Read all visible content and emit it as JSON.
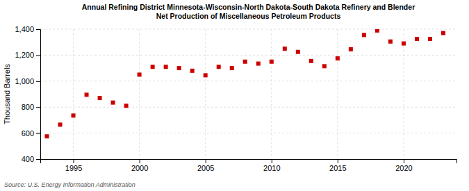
{
  "chart_data": {
    "type": "scatter",
    "title": "Annual Refining District Minnesota-Wisconsin-North Dakota-South Dakota Refinery and Blender\nNet Production of Miscellaneous Petroleum Products",
    "ylabel": "Thousand Barrels",
    "source": "Source: U.S. Energy Information Administration",
    "x": [
      1993,
      1994,
      1995,
      1996,
      1997,
      1998,
      1999,
      2000,
      2001,
      2002,
      2003,
      2004,
      2005,
      2006,
      2007,
      2008,
      2009,
      2010,
      2011,
      2012,
      2013,
      2014,
      2015,
      2016,
      2017,
      2018,
      2019,
      2020,
      2021,
      2022,
      2023
    ],
    "values": [
      575,
      665,
      735,
      895,
      870,
      835,
      810,
      1050,
      1110,
      1110,
      1100,
      1080,
      1045,
      1110,
      1100,
      1150,
      1135,
      1150,
      1250,
      1225,
      1155,
      1115,
      1175,
      1245,
      1355,
      1390,
      1305,
      1290,
      1325,
      1325,
      1370
    ],
    "color": "#cc0000",
    "marker": "square",
    "xlim": [
      1992.5,
      2024
    ],
    "xticks": [
      1995,
      2000,
      2005,
      2010,
      2015,
      2020
    ],
    "ylim": [
      400,
      1400
    ],
    "yticks": [
      400,
      600,
      800,
      {
        "value": 1000,
        "label": "1,000"
      },
      {
        "value": 1200,
        "label": "1,200"
      },
      {
        "value": 1400,
        "label": "1,400"
      }
    ],
    "grid": true
  }
}
